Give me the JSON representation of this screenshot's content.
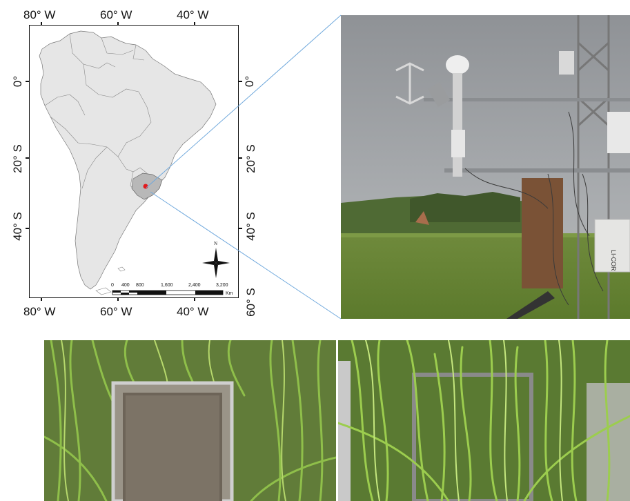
{
  "map": {
    "lon_top": [
      "80° W",
      "60° W",
      "40° W"
    ],
    "lon_bottom": [
      "80° W",
      "60° W",
      "40° W"
    ],
    "lat_left": [
      "0°",
      "20° S",
      "40° S"
    ],
    "lat_right": [
      "0°",
      "20° S",
      "40° S",
      "60° S"
    ],
    "scale_labels": [
      "0",
      "400",
      "800",
      "1,600",
      "2,400",
      "3,200"
    ],
    "scale_unit": "Km",
    "north_label": "N",
    "study_site_color": "#e31a1c",
    "land_color": "#e6e6e6",
    "highlight_color": "#b8b8b8"
  },
  "photos": {
    "tower_instrument_label": "LI-COR",
    "callout_line_color": "#6fa8dc"
  }
}
